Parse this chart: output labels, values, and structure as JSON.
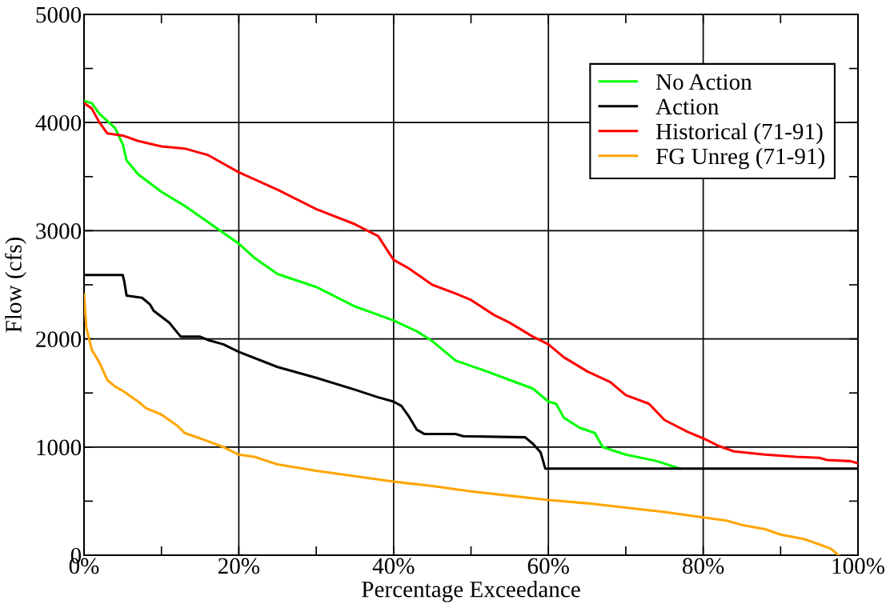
{
  "chart_data": {
    "type": "line",
    "xlabel": "Percentage Exceedance",
    "ylabel": "Flow (cfs)",
    "xlim": [
      0,
      100
    ],
    "ylim": [
      0,
      5000
    ],
    "xticks": [
      {
        "value": 0,
        "label": "0%"
      },
      {
        "value": 10,
        "label": null
      },
      {
        "value": 20,
        "label": "20%"
      },
      {
        "value": 30,
        "label": null
      },
      {
        "value": 40,
        "label": "40%"
      },
      {
        "value": 50,
        "label": null
      },
      {
        "value": 60,
        "label": "60%"
      },
      {
        "value": 70,
        "label": null
      },
      {
        "value": 80,
        "label": "80%"
      },
      {
        "value": 90,
        "label": null
      },
      {
        "value": 100,
        "label": "100%"
      }
    ],
    "yticks": [
      0,
      {
        "value": 500,
        "label": null
      },
      1000,
      {
        "value": 1500,
        "label": null
      },
      2000,
      {
        "value": 2500,
        "label": null
      },
      3000,
      {
        "value": 3500,
        "label": null
      },
      4000,
      {
        "value": 4500,
        "label": null
      },
      5000
    ],
    "grid": true,
    "legend": "top right",
    "marker": "none",
    "line_style": "solid",
    "series": [
      {
        "name": "No Action",
        "color": "#00ff00",
        "x": [
          0,
          1,
          2,
          4,
          5,
          5.5,
          7,
          10,
          13,
          16,
          20,
          22,
          25,
          30,
          35,
          40,
          43,
          45,
          48,
          52,
          55,
          58,
          60,
          61,
          62,
          64,
          66,
          67,
          70,
          74,
          77
        ],
        "values": [
          4200,
          4180,
          4080,
          3950,
          3800,
          3650,
          3520,
          3360,
          3230,
          3080,
          2880,
          2750,
          2600,
          2480,
          2300,
          2170,
          2070,
          1980,
          1800,
          1700,
          1620,
          1540,
          1420,
          1400,
          1270,
          1180,
          1130,
          1000,
          930,
          870,
          800
        ]
      },
      {
        "name": "Action",
        "color": "#000000",
        "x": [
          0,
          5,
          5.2,
          5.5,
          7.5,
          8.5,
          9,
          11,
          12.5,
          15,
          16,
          18,
          20,
          25,
          30,
          35,
          38,
          40,
          41,
          42,
          43,
          44,
          48,
          49,
          57,
          58,
          59,
          59.6,
          100
        ],
        "values": [
          2590,
          2590,
          2530,
          2400,
          2380,
          2320,
          2260,
          2150,
          2020,
          2020,
          1990,
          1950,
          1880,
          1740,
          1640,
          1530,
          1460,
          1420,
          1380,
          1280,
          1160,
          1120,
          1120,
          1100,
          1090,
          1030,
          950,
          800,
          800
        ]
      },
      {
        "name": "Historical (71-91)",
        "color": "#ff0000",
        "x": [
          0,
          1,
          2,
          3,
          5,
          7,
          10,
          13,
          16,
          20,
          25,
          30,
          35,
          38,
          40,
          42,
          45,
          48,
          50,
          53,
          55,
          58,
          60,
          62,
          65,
          68,
          70,
          73,
          75,
          78,
          80,
          82,
          84,
          88,
          92,
          95,
          96,
          99,
          100
        ],
        "values": [
          4180,
          4130,
          4000,
          3900,
          3880,
          3830,
          3780,
          3760,
          3700,
          3540,
          3380,
          3200,
          3060,
          2950,
          2730,
          2650,
          2500,
          2420,
          2360,
          2220,
          2150,
          2020,
          1950,
          1830,
          1700,
          1600,
          1480,
          1400,
          1250,
          1140,
          1080,
          1010,
          960,
          930,
          910,
          900,
          880,
          870,
          850
        ]
      },
      {
        "name": "FG Unreg (71-91)",
        "color": "#ffa500",
        "x": [
          0,
          0.3,
          1,
          2,
          3,
          4,
          5,
          7,
          8,
          10,
          12,
          13,
          15,
          18,
          20,
          22,
          25,
          30,
          35,
          40,
          45,
          50,
          55,
          60,
          65,
          70,
          75,
          80,
          83,
          85,
          88,
          90,
          93,
          95,
          96.5,
          97.5
        ],
        "values": [
          2410,
          2100,
          1900,
          1780,
          1620,
          1560,
          1520,
          1420,
          1360,
          1300,
          1200,
          1130,
          1080,
          1000,
          930,
          910,
          840,
          780,
          730,
          680,
          640,
          590,
          550,
          510,
          480,
          440,
          400,
          350,
          320,
          280,
          240,
          190,
          150,
          100,
          60,
          0
        ]
      }
    ]
  }
}
